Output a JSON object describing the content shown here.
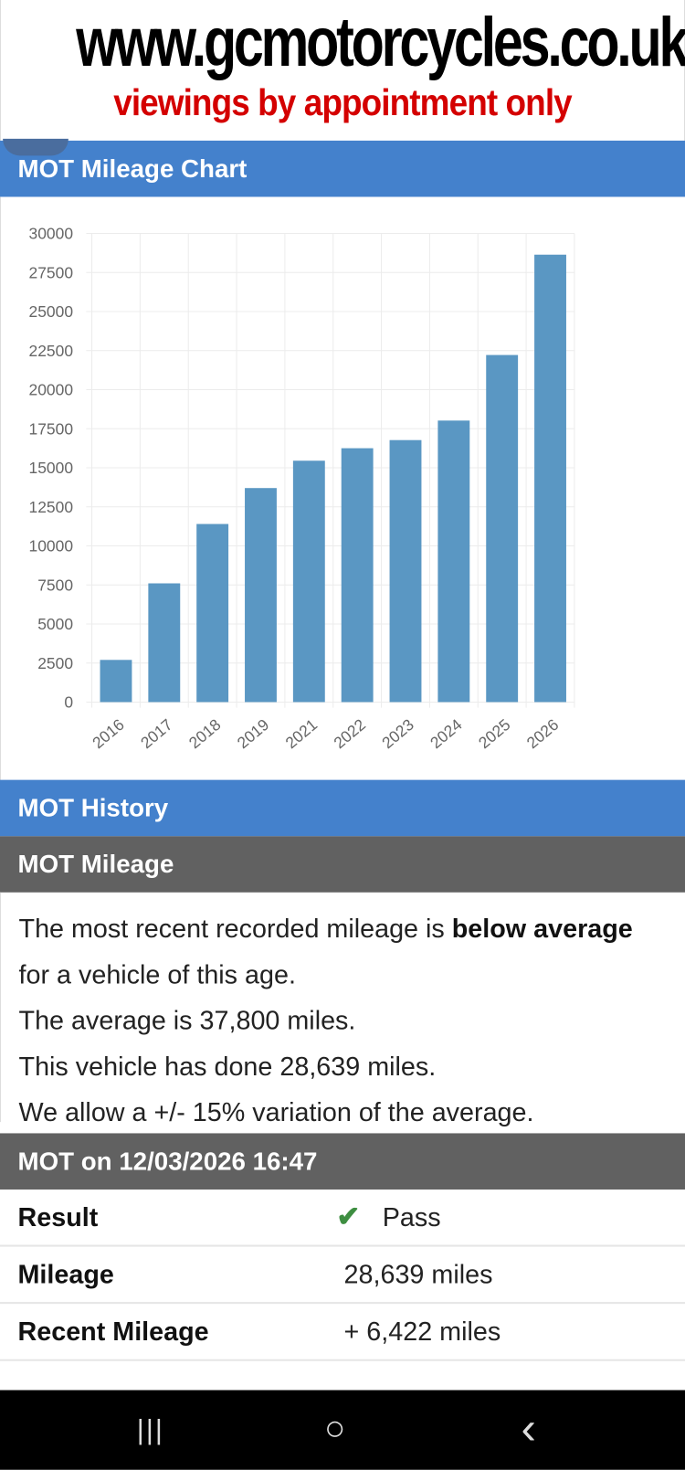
{
  "banner": {
    "site": "www.gcmotorcycles.co.uk",
    "tagline": "viewings by appointment only"
  },
  "chart_section": {
    "title": "MOT Mileage Chart"
  },
  "chart_data": {
    "type": "bar",
    "categories": [
      "2016",
      "2017",
      "2018",
      "2019",
      "2021",
      "2022",
      "2023",
      "2024",
      "2025",
      "2026"
    ],
    "values": [
      2700,
      7600,
      11400,
      13700,
      15450,
      16250,
      16770,
      18020,
      22217,
      28639
    ],
    "ylim": [
      0,
      30000
    ],
    "yticks": [
      0,
      2500,
      5000,
      7500,
      10000,
      12500,
      15000,
      17500,
      20000,
      22500,
      25000,
      27500,
      30000
    ],
    "grid": true,
    "bar_color": "#5a97c3"
  },
  "history": {
    "title": "MOT History"
  },
  "mileage": {
    "title": "MOT Mileage",
    "line1_pre": "The most recent recorded mileage is ",
    "line1_bold": "below average",
    "line1_post": " for a vehicle of this age.",
    "line2": "The average is 37,800 miles.",
    "line3": "This vehicle has done 28,639 miles.",
    "line4": "We allow a +/- 15% variation of the average."
  },
  "mot": {
    "title": "MOT on 12/03/2026 16:47",
    "rows": [
      {
        "label": "Result",
        "value": "Pass",
        "icon": "check-icon"
      },
      {
        "label": "Mileage",
        "value": "28,639 miles"
      },
      {
        "label": "Recent Mileage",
        "value": "+ 6,422 miles"
      }
    ]
  },
  "colors": {
    "header_blue": "#4481cc",
    "header_gray": "#616161",
    "pass_green": "#3e8e41",
    "tagline_red": "#d40000"
  },
  "navbar": {
    "recents": "|||",
    "home": "○",
    "back": "‹"
  }
}
